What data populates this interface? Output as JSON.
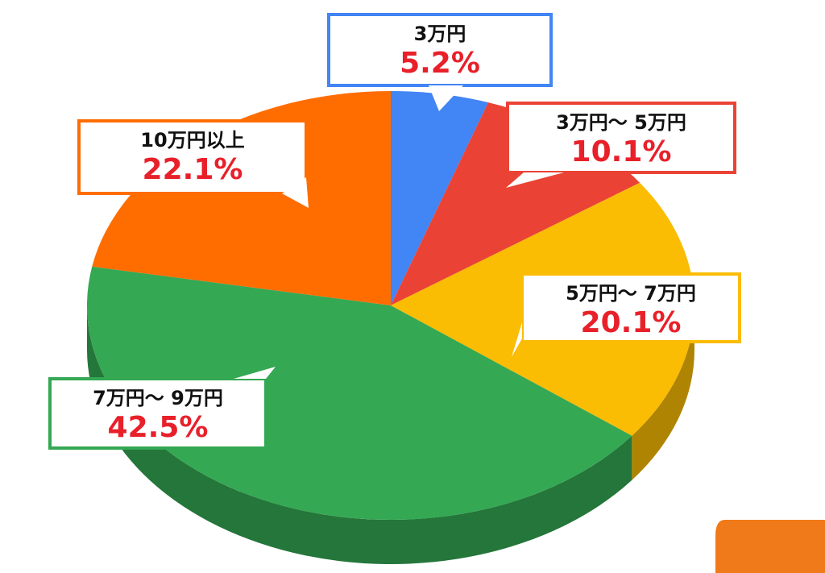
{
  "chart_data": {
    "type": "pie",
    "categories": [
      "3万円",
      "3万円〜 5万円",
      "5万円〜 7万円",
      "7万円〜 9万円",
      "10万円以上"
    ],
    "values": [
      5.2,
      10.1,
      20.1,
      42.5,
      22.1
    ],
    "value_labels": [
      "5.2%",
      "10.1%",
      "20.1%",
      "42.5%",
      "22.1%"
    ],
    "colors": [
      "#4285f4",
      "#ea4335",
      "#fbbc04",
      "#34a853",
      "#ff6d01"
    ]
  }
}
